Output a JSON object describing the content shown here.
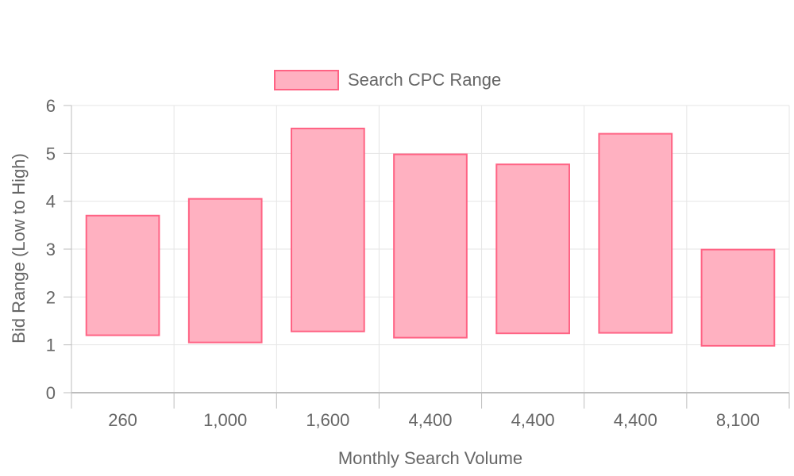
{
  "chart_data": {
    "type": "bar",
    "subtype": "floating-range",
    "categories": [
      "260",
      "1,000",
      "1,600",
      "4,400",
      "4,400",
      "4,400",
      "8,100"
    ],
    "series": [
      {
        "name": "Search CPC Range",
        "ranges": [
          [
            1.2,
            3.7
          ],
          [
            1.05,
            4.05
          ],
          [
            1.28,
            5.52
          ],
          [
            1.15,
            4.98
          ],
          [
            1.24,
            4.77
          ],
          [
            1.25,
            5.41
          ],
          [
            0.98,
            2.99
          ]
        ]
      }
    ],
    "xlabel": "Monthly Search Volume",
    "ylabel": "Bid Range (Low to High)",
    "ylim": [
      0,
      6
    ],
    "yticks": [
      0,
      1,
      2,
      3,
      4,
      5,
      6
    ],
    "grid": true,
    "legend_position": "top",
    "colors": {
      "bar_fill": "#ffb1c1",
      "bar_stroke": "#ff6384",
      "grid": "#e5e5e5",
      "axis": "#bdbdbd",
      "text": "#666666"
    }
  }
}
